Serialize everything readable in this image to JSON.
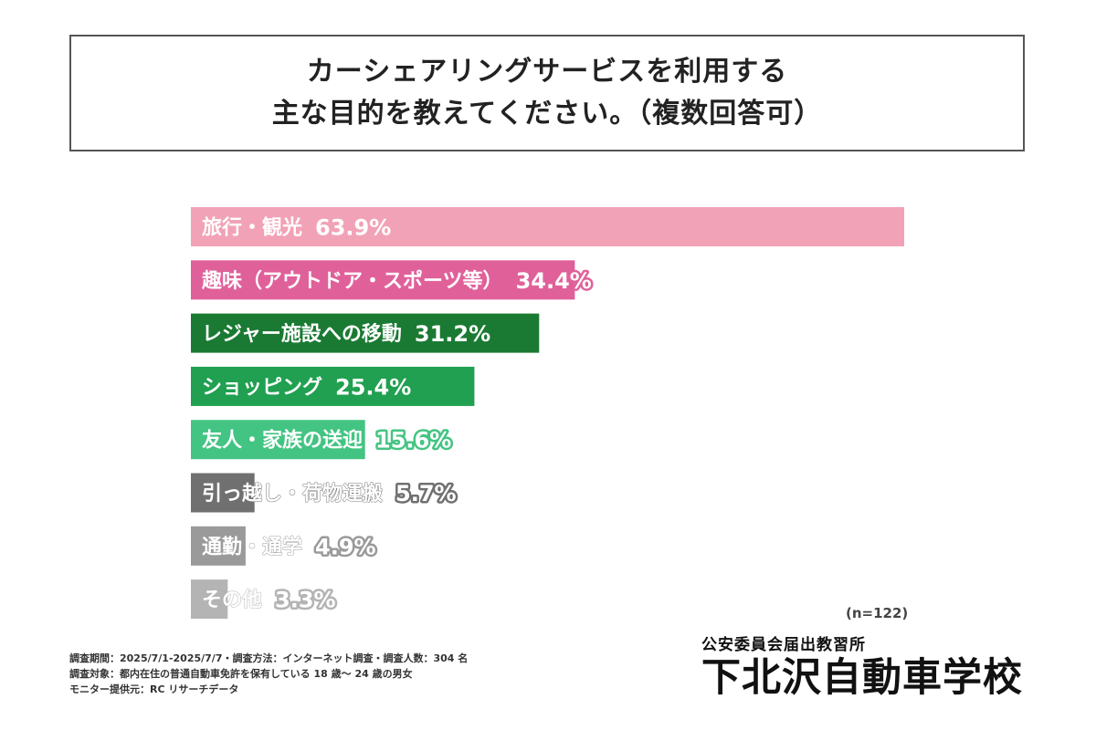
{
  "title": {
    "line1": "カーシェアリングサービスを利用する",
    "line2": "主な目的を教えてください。（複数回答可）"
  },
  "chart_data": {
    "type": "bar",
    "orientation": "horizontal",
    "title": "カーシェアリングサービスを利用する主な目的を教えてください。（複数回答可）",
    "categories": [
      "旅行・観光",
      "趣味（アウトドア・スポーツ等）",
      "レジャー施設への移動",
      "ショッピング",
      "友人・家族の送迎",
      "引っ越し・荷物運搬",
      "通勤・通学",
      "その他"
    ],
    "values": [
      63.9,
      34.4,
      31.2,
      25.4,
      15.6,
      5.7,
      4.9,
      3.3
    ],
    "value_labels": [
      "63.9%",
      "34.4%",
      "31.2%",
      "25.4%",
      "15.6%",
      "5.7%",
      "4.9%",
      "3.3%"
    ],
    "colors": [
      "#f2a2b6",
      "#e0619a",
      "#1a7a33",
      "#20a050",
      "#44c483",
      "#707070",
      "#9a9a9a",
      "#b4b4b4"
    ],
    "unit": "%",
    "grid": false,
    "legend": "none"
  },
  "sample_note": "(n=122)",
  "footnotes": [
    "調査期間：2025/7/1-2025/7/7・調査方法：インターネット調査・調査人数：304 名",
    "調査対象：都内在住の普通自動車免許を保有している 18 歳〜 24 歳の男女",
    "モニター提供元：RC リサーチデータ"
  ],
  "brand": {
    "subtitle": "公安委員会届出教習所",
    "name": "下北沢自動車学校"
  }
}
